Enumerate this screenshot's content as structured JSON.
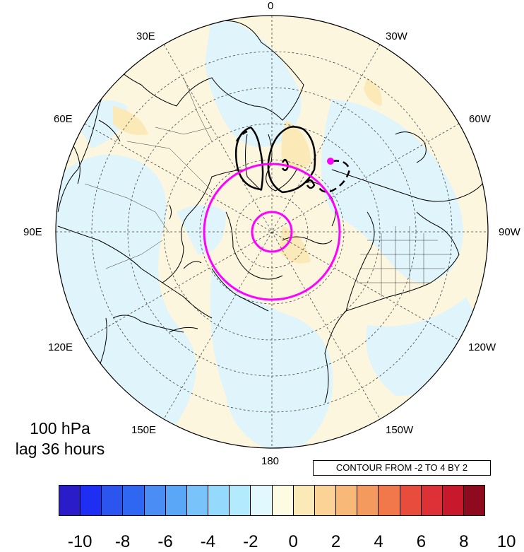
{
  "longitude_labels": {
    "lon_0": "0",
    "lon_30w": "30W",
    "lon_60w": "60W",
    "lon_90w": "90W",
    "lon_120w": "120W",
    "lon_150w": "150W",
    "lon_180": "180",
    "lon_150e": "150E",
    "lon_120e": "120E",
    "lon_90e": "90E",
    "lon_60e": "60E",
    "lon_30e": "30E"
  },
  "caption": {
    "level": "100 hPa",
    "lag": "lag 36 hours"
  },
  "contour_info": "CONTOUR FROM -2 TO 4 BY 2",
  "colorbar": {
    "labels": [
      "-10",
      "-8",
      "-6",
      "-4",
      "-2",
      "0",
      "2",
      "4",
      "6",
      "8",
      "10"
    ],
    "colors": [
      "#2a1cc8",
      "#1e2ef2",
      "#2c55f0",
      "#2f66f2",
      "#4a8ef5",
      "#5aa6f7",
      "#78c4fa",
      "#95d9fc",
      "#b3eafd",
      "#e0f8fe",
      "#fdfce3",
      "#fce9b8",
      "#fbd397",
      "#f8b878",
      "#f59a5e",
      "#f0784a",
      "#e84c3c",
      "#de3037",
      "#c8182c",
      "#8e0a1e"
    ]
  },
  "colors": {
    "land_outline": "#000000",
    "highlight_circle": "#ff00ff",
    "anomaly_neg": "#dff4fb",
    "anomaly_pos": "#fdf6df",
    "anomaly_pos_strong": "#fce9b8"
  }
}
